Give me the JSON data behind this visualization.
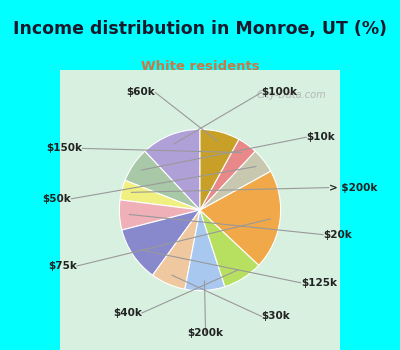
{
  "title": "Income distribution in Monroe, UT (%)",
  "subtitle": "White residents",
  "title_color": "#1a1a2e",
  "subtitle_color": "#cc7744",
  "bg_color": "#00ffff",
  "chart_bg_left": "#c8e8d8",
  "chart_bg_right": "#e8f8f8",
  "watermark": "City-Data.com",
  "labels": [
    "$100k",
    "$10k",
    "> $200k",
    "$20k",
    "$125k",
    "$30k",
    "$200k",
    "$40k",
    "$75k",
    "$50k",
    "$150k",
    "$60k"
  ],
  "values": [
    12,
    7,
    4,
    6,
    11,
    7,
    8,
    8,
    20,
    5,
    4,
    8
  ],
  "colors": [
    "#b0a0d8",
    "#a8c8a8",
    "#f0f080",
    "#f0b0b8",
    "#8888cc",
    "#f0c8a0",
    "#a8c8f0",
    "#b8e060",
    "#f0a848",
    "#c8c8b0",
    "#e88888",
    "#c8a028"
  ],
  "startangle": 90
}
